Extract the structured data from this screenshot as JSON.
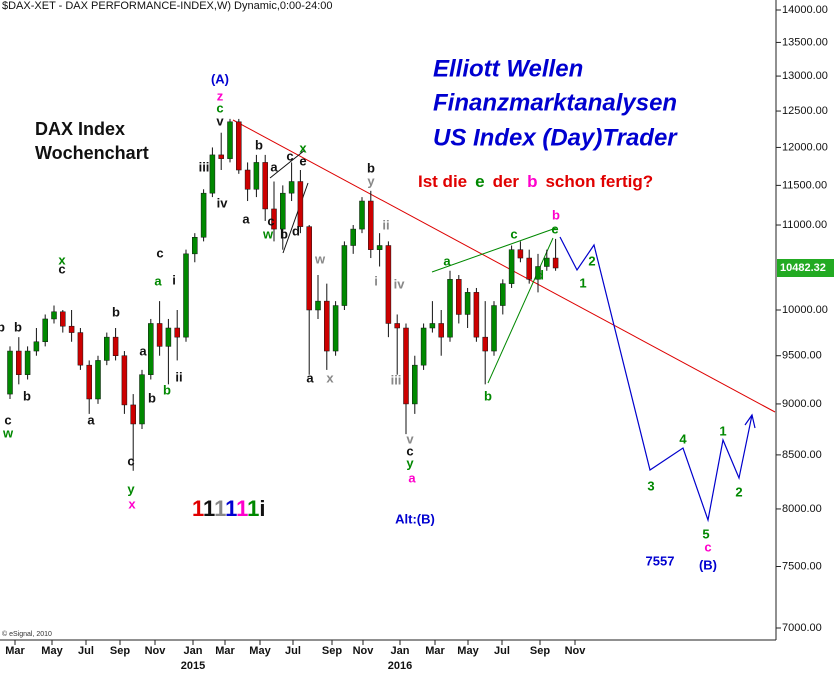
{
  "chart_data": {
    "type": "candlestick",
    "title": "$DAX-XET - DAX PERFORMANCE-INDEX,W) Dynamic,0:00-24:00",
    "log_scale": true,
    "up_color": "#008800",
    "down_color": "#cc0000",
    "open": [
      9100,
      9550,
      9300,
      9550,
      9650,
      9900,
      9980,
      9820,
      9750,
      9400,
      9050,
      9450,
      9700,
      9500,
      8990,
      8800,
      9300,
      9850,
      9600,
      9800,
      9700,
      10650,
      10850,
      11400,
      11900,
      11850,
      12350,
      11700,
      11450,
      11800,
      11200,
      10950,
      11400,
      11550,
      10980,
      10000,
      10100,
      9550,
      10050,
      10750,
      10950,
      11300,
      10700,
      10750,
      9850,
      9800,
      9000,
      9400,
      9800,
      9850,
      9700,
      10350,
      9950,
      10200,
      9700,
      9550,
      10050,
      10300,
      10700,
      10600,
      10350,
      10500,
      10600
    ],
    "high": [
      9600,
      9700,
      9600,
      9800,
      9950,
      10050,
      10000,
      10000,
      9800,
      9450,
      9500,
      9750,
      9800,
      9550,
      9100,
      9350,
      9900,
      10100,
      9900,
      10000,
      10700,
      10900,
      11450,
      12000,
      12200,
      12390,
      12390,
      11800,
      11900,
      11900,
      11550,
      11500,
      11800,
      11700,
      11000,
      10400,
      10300,
      10100,
      10800,
      11000,
      11350,
      11430,
      10900,
      10800,
      9950,
      9850,
      9500,
      9850,
      10100,
      10000,
      10450,
      10400,
      10250,
      10250,
      10100,
      10100,
      10350,
      10750,
      10800,
      10700,
      10650,
      10700,
      10830
    ],
    "low": [
      9050,
      9200,
      9250,
      9500,
      9600,
      9850,
      9750,
      9650,
      9350,
      8900,
      9000,
      9400,
      9450,
      8900,
      8350,
      8750,
      9250,
      9500,
      9200,
      9450,
      9650,
      10550,
      10800,
      11350,
      11700,
      11800,
      11650,
      11300,
      11350,
      11050,
      10800,
      10700,
      11300,
      10900,
      9300,
      9900,
      9350,
      9500,
      10000,
      10650,
      10900,
      10600,
      10500,
      9700,
      9300,
      8700,
      8900,
      9350,
      9750,
      9500,
      9650,
      9850,
      9800,
      9650,
      9200,
      9500,
      9950,
      10250,
      10550,
      10300,
      10200,
      10450,
      10450
    ],
    "close": [
      9550,
      9300,
      9550,
      9650,
      9900,
      9980,
      9820,
      9750,
      9400,
      9050,
      9450,
      9700,
      9500,
      8990,
      8800,
      9300,
      9850,
      9600,
      9800,
      9700,
      10650,
      10850,
      11400,
      11900,
      11850,
      12350,
      11700,
      11450,
      11800,
      11200,
      10950,
      11400,
      11550,
      10980,
      10000,
      10100,
      9550,
      10050,
      10750,
      10950,
      11300,
      10700,
      10750,
      9850,
      9800,
      9000,
      9400,
      9800,
      9850,
      9700,
      10350,
      9950,
      10200,
      9700,
      9550,
      10050,
      10300,
      10700,
      10600,
      10350,
      10500,
      10600,
      10482.32
    ],
    "ylim": [
      7000,
      14000
    ],
    "yticks": [
      {
        "value": 7000,
        "label": "7000.00"
      },
      {
        "value": 7500,
        "label": "7500.00"
      },
      {
        "value": 8000,
        "label": "8000.00"
      },
      {
        "value": 8500,
        "label": "8500.00"
      },
      {
        "value": 9000,
        "label": "9000.00"
      },
      {
        "value": 9500,
        "label": "9500.00"
      },
      {
        "value": 10000,
        "label": "10000.00"
      },
      {
        "value": 11000,
        "label": "11000.00"
      },
      {
        "value": 11500,
        "label": "11500.00"
      },
      {
        "value": 12000,
        "label": "12000.00"
      },
      {
        "value": 12500,
        "label": "12500.00"
      },
      {
        "value": 13000,
        "label": "13000.00"
      },
      {
        "value": 13500,
        "label": "13500.00"
      },
      {
        "value": 14000,
        "label": "14000.00"
      }
    ],
    "months": [
      "Mar",
      "May",
      "Jul",
      "Sep",
      "Nov",
      "Jan",
      "Mar",
      "May",
      "Jul",
      "Sep",
      "Nov",
      "Jan",
      "Mar",
      "May",
      "Jul",
      "Sep",
      "Nov"
    ],
    "years": [
      "2015",
      "2016"
    ],
    "headline": [
      "Elliott Wellen",
      "Finanzmarktanalysen",
      "US Index (Day)Trader"
    ],
    "subtitle": [
      "DAX Index",
      "Wochenchart"
    ],
    "question": [
      {
        "text": "Ist die",
        "color": "#e00000"
      },
      {
        "text": "e",
        "color": "#008800"
      },
      {
        "text": "der",
        "color": "#e00000"
      },
      {
        "text": "b",
        "color": "#ff00cc"
      },
      {
        "text": "schon fertig?",
        "color": "#e00000"
      }
    ],
    "counter": [
      {
        "text": "1",
        "color": "#e00000"
      },
      {
        "text": "1",
        "color": "#111111"
      },
      {
        "text": "1",
        "color": "#888888"
      },
      {
        "text": "1",
        "color": "#0000d0"
      },
      {
        "text": "1",
        "color": "#ff00cc"
      },
      {
        "text": "1",
        "color": "#008800"
      },
      {
        "text": "i",
        "color": "#111111"
      }
    ],
    "copyright": "© eSignal, 2010",
    "annotations": [
      {
        "text": "(A)",
        "color": "#0000d0"
      },
      {
        "text": "z",
        "color": "#ff00cc"
      },
      {
        "text": "c",
        "color": "#008800"
      },
      {
        "text": "v",
        "color": "#111111"
      },
      {
        "text": "iii",
        "color": "#111111"
      },
      {
        "text": "iv",
        "color": "#111111"
      },
      {
        "text": "a",
        "color": "#111111"
      },
      {
        "text": "b",
        "color": "#111111"
      },
      {
        "text": "a",
        "color": "#111111"
      },
      {
        "text": "c",
        "color": "#111111"
      },
      {
        "text": "x",
        "color": "#008800"
      },
      {
        "text": "e",
        "color": "#111111"
      },
      {
        "text": "c",
        "color": "#111111"
      },
      {
        "text": "w",
        "color": "#008800"
      },
      {
        "text": "b",
        "color": "#111111"
      },
      {
        "text": "d",
        "color": "#111111"
      },
      {
        "text": "b",
        "color": "#111111"
      },
      {
        "text": "y",
        "color": "#888888"
      },
      {
        "text": "ii",
        "color": "#888888"
      },
      {
        "text": "w",
        "color": "#888888"
      },
      {
        "text": "i",
        "color": "#888888"
      },
      {
        "text": "iv",
        "color": "#888888"
      },
      {
        "text": "iii",
        "color": "#888888"
      },
      {
        "text": "a",
        "color": "#111111"
      },
      {
        "text": "x",
        "color": "#888888"
      },
      {
        "text": "v",
        "color": "#888888"
      },
      {
        "text": "c",
        "color": "#111111"
      },
      {
        "text": "y",
        "color": "#008800"
      },
      {
        "text": "a",
        "color": "#ff00cc"
      },
      {
        "text": "a",
        "color": "#008800"
      },
      {
        "text": "c",
        "color": "#008800"
      },
      {
        "text": "b",
        "color": "#ff00cc"
      },
      {
        "text": "e",
        "color": "#008800"
      },
      {
        "text": "d",
        "color": "#008800"
      },
      {
        "text": "b",
        "color": "#008800"
      },
      {
        "text": "1",
        "color": "#008800"
      },
      {
        "text": "2",
        "color": "#008800"
      },
      {
        "text": "3",
        "color": "#008800"
      },
      {
        "text": "4",
        "color": "#008800"
      },
      {
        "text": "5",
        "color": "#008800"
      },
      {
        "text": "c",
        "color": "#ff00cc"
      },
      {
        "text": "1",
        "color": "#008800"
      },
      {
        "text": "2",
        "color": "#008800"
      },
      {
        "text": "b",
        "color": "#111111"
      },
      {
        "text": "b",
        "color": "#111111"
      },
      {
        "text": "c",
        "color": "#111111"
      },
      {
        "text": "w",
        "color": "#008800"
      },
      {
        "text": "b",
        "color": "#111111"
      },
      {
        "text": "x",
        "color": "#008800"
      },
      {
        "text": "c",
        "color": "#111111"
      },
      {
        "text": "a",
        "color": "#111111"
      },
      {
        "text": "b",
        "color": "#111111"
      },
      {
        "text": "a",
        "color": "#111111"
      },
      {
        "text": "c",
        "color": "#111111"
      },
      {
        "text": "a",
        "color": "#008800"
      },
      {
        "text": "i",
        "color": "#111111"
      },
      {
        "text": "ii",
        "color": "#111111"
      },
      {
        "text": "b",
        "color": "#111111"
      },
      {
        "text": "b",
        "color": "#008800"
      },
      {
        "text": "c",
        "color": "#111111"
      },
      {
        "text": "y",
        "color": "#008800"
      },
      {
        "text": "x",
        "color": "#ff00cc"
      },
      {
        "text": "Alt:(B)",
        "color": "#0000d0"
      },
      {
        "text": "7557",
        "color": "#0000d0"
      },
      {
        "text": "(B)",
        "color": "#0000d0"
      }
    ]
  }
}
